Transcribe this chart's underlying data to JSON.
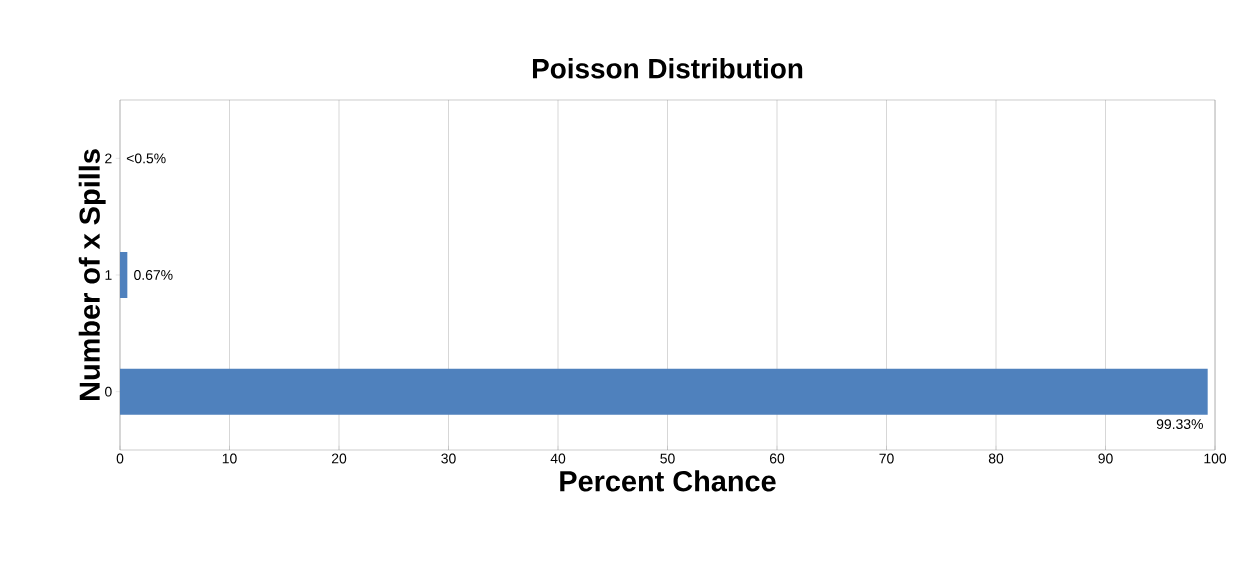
{
  "chart_data": {
    "type": "bar",
    "orientation": "horizontal",
    "title": "Poisson Distribution",
    "xlabel": "Percent Chance",
    "ylabel": "Number of x Spills",
    "categories": [
      "2",
      "1",
      "0"
    ],
    "values": [
      0,
      0.67,
      99.33
    ],
    "value_labels": [
      "<0.5%",
      "0.67%",
      "99.33%"
    ],
    "color": "#4f81bd",
    "xlim": [
      0,
      100
    ],
    "xticks": [
      0,
      10,
      20,
      30,
      40,
      50,
      60,
      70,
      80,
      90,
      100
    ],
    "grid": "x"
  }
}
